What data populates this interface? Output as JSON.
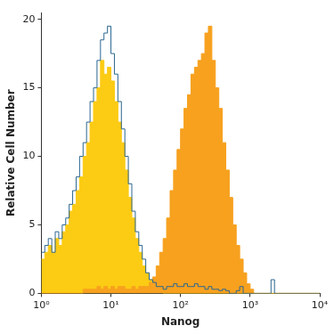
{
  "chart_data": {
    "type": "histogram",
    "x_label": "Nanog",
    "y_label": "Relative Cell Number",
    "log": "x",
    "grid": false,
    "xlim": [
      1,
      10000
    ],
    "xticks": [
      {
        "value": 1,
        "label": "10⁰"
      },
      {
        "value": 10,
        "label": "10¹"
      },
      {
        "value": 100,
        "label": "10²"
      },
      {
        "value": 1000,
        "label": "10³"
      },
      {
        "value": 10000,
        "label": "10⁴"
      }
    ],
    "ylim": [
      0,
      20.5
    ],
    "yticks": [
      0,
      5,
      10,
      15,
      20
    ],
    "bins": [
      1,
      1.122,
      1.259,
      1.413,
      1.585,
      1.778,
      1.995,
      2.239,
      2.512,
      2.818,
      3.162,
      3.548,
      3.981,
      4.467,
      5.012,
      5.623,
      6.31,
      7.079,
      7.943,
      8.913,
      10,
      11.22,
      12.59,
      14.13,
      15.85,
      17.78,
      19.95,
      22.39,
      25.12,
      28.18,
      31.62,
      35.48,
      39.81,
      44.67,
      50.12,
      56.23,
      63.1,
      70.79,
      79.43,
      89.13,
      100,
      112.2,
      125.9,
      141.3,
      158.5,
      177.8,
      199.5,
      223.9,
      251.2,
      281.8,
      316.2,
      354.8,
      398.1,
      446.7,
      501.2,
      562.3,
      631,
      707.9,
      794.3,
      891.3,
      1000,
      1122,
      1259,
      1413,
      1585,
      1778,
      1995,
      2239,
      2512,
      2818,
      3162,
      3548,
      3981,
      4467,
      5012,
      5623,
      6310,
      7079,
      7943,
      8913,
      10000
    ],
    "series": [
      {
        "type": "area",
        "color": "#fccb14",
        "values": [
          2.5,
          3,
          3.5,
          3,
          4,
          3.5,
          4.5,
          5,
          6,
          6.5,
          7.5,
          8.5,
          10,
          11,
          12.5,
          14,
          15,
          17,
          16,
          16.5,
          15.5,
          14,
          12.5,
          11,
          9,
          7,
          5.5,
          4,
          3,
          2,
          1.5,
          1,
          0.7,
          0.5,
          0.3,
          0,
          0,
          0,
          0,
          0,
          0,
          0,
          0,
          0,
          0,
          0,
          0,
          0,
          0,
          0,
          0,
          0,
          0,
          0,
          0,
          0,
          0,
          0,
          0,
          0,
          0,
          0,
          0,
          0,
          0,
          0,
          0,
          0,
          0,
          0,
          0,
          0,
          0,
          0,
          0,
          0,
          0,
          0,
          0,
          0
        ]
      },
      {
        "type": "area",
        "color": "#f7a11f",
        "values": [
          0,
          0,
          0,
          0,
          0,
          0,
          0,
          0,
          0,
          0,
          0,
          0,
          0.3,
          0.3,
          0.3,
          0.3,
          0.5,
          0.3,
          0.5,
          0.3,
          0.5,
          0.3,
          0.5,
          0.5,
          0.3,
          0.3,
          0.5,
          0.3,
          0.5,
          0.5,
          0.5,
          0.8,
          1.2,
          2,
          3,
          4,
          5.5,
          7.5,
          9,
          10.5,
          12,
          13.5,
          14.5,
          16,
          16.5,
          17,
          17.5,
          19,
          19.5,
          17,
          15,
          13.5,
          11,
          9,
          7,
          5,
          3.5,
          2.5,
          1.5,
          0.7,
          0.3,
          0,
          0,
          0,
          0,
          0,
          0,
          0,
          0,
          0,
          0,
          0,
          0,
          0,
          0,
          0,
          0,
          0,
          0,
          0
        ]
      },
      {
        "type": "line",
        "color": "#2b6791",
        "values": [
          3,
          3.5,
          4,
          3,
          4.5,
          4,
          5,
          5.5,
          6.5,
          7.5,
          8.5,
          10,
          11,
          12.5,
          14,
          15,
          17,
          18.5,
          19,
          19.5,
          17.5,
          16,
          14,
          12,
          10,
          8,
          6,
          4.5,
          3.5,
          2.5,
          1.5,
          1,
          0.8,
          0.5,
          0.5,
          0.3,
          0.5,
          0.5,
          0.7,
          0.5,
          0.5,
          0.7,
          0.5,
          0.5,
          0.7,
          0.5,
          0.5,
          0.3,
          0.5,
          0.3,
          0.3,
          0.2,
          0.3,
          0.2,
          0,
          0,
          0.2,
          0.5,
          0,
          0,
          0,
          0,
          0,
          0,
          0,
          0,
          1,
          0,
          0,
          0,
          0,
          0,
          0,
          0,
          0,
          0,
          0,
          0,
          0,
          0
        ]
      }
    ]
  }
}
